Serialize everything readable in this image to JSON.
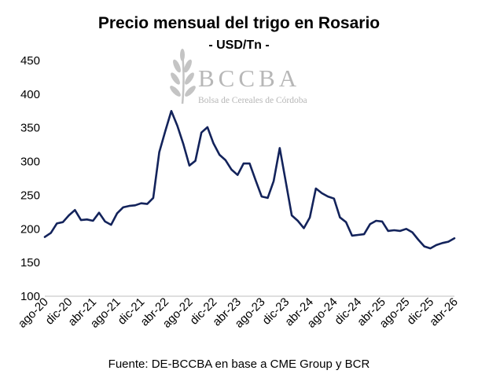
{
  "title": "Precio mensual del trigo en Rosario",
  "subtitle": "- USD/Tn -",
  "source": "Fuente: DE-BCCBA en base a CME Group y BCR",
  "watermark": {
    "name": "BCCBA",
    "tagline": "Bolsa de Cereales de Córdoba",
    "color": "#b7b7b7"
  },
  "chart_data": {
    "type": "line",
    "line_color": "#13235b",
    "ylim": [
      100,
      450
    ],
    "yticks": [
      100,
      150,
      200,
      250,
      300,
      350,
      400,
      450
    ],
    "grid": false,
    "x_tick_labels": [
      "ago-20",
      "dic-20",
      "abr-21",
      "ago-21",
      "dic-21",
      "abr-22",
      "ago-22",
      "dic-22",
      "abr-23",
      "ago-23",
      "dic-23",
      "abr-24",
      "ago-24",
      "dic-24",
      "abr-25",
      "ago-25",
      "dic-25",
      "abr-26"
    ],
    "series": [
      {
        "x": [
          "ago-20",
          "sep-20",
          "oct-20",
          "nov-20",
          "dic-20",
          "ene-21",
          "feb-21",
          "mar-21",
          "abr-21",
          "may-21",
          "jun-21",
          "jul-21",
          "ago-21",
          "sep-21",
          "oct-21",
          "nov-21",
          "dic-21",
          "ene-22",
          "feb-22",
          "mar-22",
          "abr-22",
          "may-22",
          "jun-22",
          "jul-22",
          "ago-22",
          "sep-22",
          "oct-22",
          "nov-22",
          "dic-22",
          "ene-23",
          "feb-23",
          "mar-23",
          "abr-23",
          "may-23",
          "jun-23",
          "jul-23",
          "ago-23",
          "sep-23",
          "oct-23",
          "nov-23",
          "dic-23",
          "ene-24",
          "feb-24",
          "mar-24",
          "abr-24",
          "may-24",
          "jun-24",
          "jul-24",
          "ago-24",
          "sep-24",
          "oct-24",
          "nov-24",
          "dic-24",
          "ene-25",
          "feb-25",
          "mar-25",
          "abr-25",
          "may-25",
          "jun-25",
          "jul-25",
          "ago-25",
          "sep-25",
          "oct-25",
          "nov-25",
          "dic-25",
          "ene-26",
          "feb-26",
          "mar-26",
          "abr-26"
        ],
        "values": [
          188,
          194,
          208,
          210,
          220,
          228,
          213,
          214,
          212,
          224,
          211,
          206,
          223,
          232,
          234,
          235,
          238,
          237,
          246,
          314,
          345,
          375,
          353,
          326,
          294,
          301,
          343,
          351,
          327,
          310,
          302,
          288,
          280,
          297,
          297,
          272,
          248,
          246,
          271,
          320,
          270,
          220,
          212,
          201,
          217,
          260,
          253,
          248,
          245,
          217,
          210,
          190,
          191,
          192,
          207,
          212,
          211,
          197,
          198,
          197,
          200,
          195,
          184,
          174,
          171,
          176,
          179,
          181,
          186
        ]
      }
    ]
  }
}
